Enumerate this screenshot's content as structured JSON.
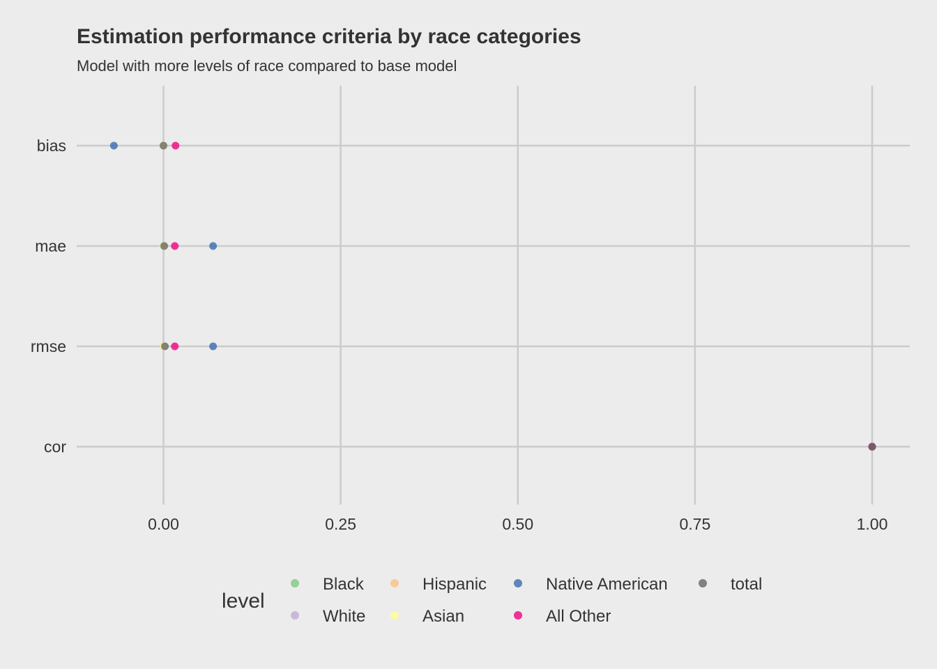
{
  "chart_data": {
    "type": "scatter",
    "title": "Estimation performance criteria by race categories",
    "subtitle": "Model with more levels of race compared to base model",
    "xlabel": "",
    "ylabel": "",
    "xlim": [
      -0.123,
      1.053
    ],
    "x_ticks": [
      "0.00",
      "0.25",
      "0.50",
      "0.75",
      "1.00"
    ],
    "categories": [
      "bias",
      "mae",
      "rmse",
      "cor"
    ],
    "grid": true,
    "legend_position": "bottom",
    "legend_title": "level",
    "series": [
      {
        "name": "Black",
        "color": "#7fc97f",
        "points": [
          {
            "y": "bias",
            "x": 0.0
          },
          {
            "y": "mae",
            "x": 0.0
          },
          {
            "y": "rmse",
            "x": 0.0
          },
          {
            "y": "cor",
            "x": 1.0
          }
        ]
      },
      {
        "name": "White",
        "color": "#beaed4",
        "points": [
          {
            "y": "bias",
            "x": 0.0
          },
          {
            "y": "mae",
            "x": 0.0
          },
          {
            "y": "rmse",
            "x": 0.0
          },
          {
            "y": "cor",
            "x": 1.0
          }
        ]
      },
      {
        "name": "Hispanic",
        "color": "#fdc086",
        "points": [
          {
            "y": "bias",
            "x": 0.0
          },
          {
            "y": "mae",
            "x": 0.001
          },
          {
            "y": "rmse",
            "x": 0.001
          },
          {
            "y": "cor",
            "x": 1.0
          }
        ]
      },
      {
        "name": "Asian",
        "color": "#ffff99",
        "points": [
          {
            "y": "bias",
            "x": 0.0
          },
          {
            "y": "mae",
            "x": 0.0
          },
          {
            "y": "rmse",
            "x": 0.0
          },
          {
            "y": "cor",
            "x": 1.0
          }
        ]
      },
      {
        "name": "Native American",
        "color": "#386cb0",
        "points": [
          {
            "y": "bias",
            "x": -0.07
          },
          {
            "y": "mae",
            "x": 0.07
          },
          {
            "y": "rmse",
            "x": 0.07
          },
          {
            "y": "cor",
            "x": 1.0
          }
        ]
      },
      {
        "name": "All Other",
        "color": "#f0027f",
        "points": [
          {
            "y": "bias",
            "x": 0.017
          },
          {
            "y": "mae",
            "x": 0.016
          },
          {
            "y": "rmse",
            "x": 0.016
          },
          {
            "y": "cor",
            "x": 1.0
          }
        ]
      },
      {
        "name": "total",
        "color": "#666666",
        "points": [
          {
            "y": "bias",
            "x": 0.0
          },
          {
            "y": "mae",
            "x": 0.001
          },
          {
            "y": "rmse",
            "x": 0.002
          },
          {
            "y": "cor",
            "x": 1.0
          }
        ]
      }
    ]
  }
}
